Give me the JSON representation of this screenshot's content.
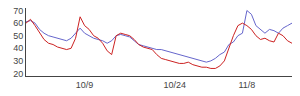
{
  "chart_data": {
    "type": "line",
    "categories": [
      null,
      null,
      null,
      null,
      null,
      null,
      null,
      null,
      null,
      null,
      null,
      null,
      null,
      "10/9",
      null,
      null,
      null,
      null,
      null,
      null,
      null,
      null,
      null,
      null,
      null,
      null,
      null,
      null,
      null,
      null,
      null,
      null,
      null,
      "10/24",
      null,
      null,
      null,
      null,
      null,
      null,
      null,
      null,
      null,
      null,
      null,
      null,
      null,
      null,
      null,
      "11/8",
      null,
      null,
      null,
      null,
      null,
      null,
      null,
      null,
      null,
      null
    ],
    "series": [
      {
        "color": "#6666cc",
        "values": [
          61,
          62,
          60,
          55,
          52,
          50,
          49,
          48,
          47,
          46,
          48,
          52,
          56,
          52,
          50,
          48,
          47,
          46,
          44,
          46,
          50,
          51,
          50,
          49,
          46,
          43,
          42,
          41,
          40,
          39,
          39,
          38,
          37,
          36,
          35,
          34,
          33,
          32,
          31,
          30,
          29,
          30,
          32,
          35,
          37,
          43,
          45,
          50,
          52,
          70,
          67,
          58,
          55,
          52,
          55,
          54,
          52,
          56,
          58,
          60
        ]
      },
      {
        "color": "#cc2222",
        "values": [
          60,
          63,
          58,
          52,
          47,
          44,
          43,
          41,
          40,
          39,
          40,
          48,
          65,
          58,
          55,
          50,
          48,
          44,
          38,
          35,
          50,
          52,
          51,
          50,
          47,
          43,
          41,
          40,
          39,
          35,
          32,
          31,
          30,
          29,
          28,
          28,
          29,
          27,
          26,
          25,
          25,
          24,
          24,
          26,
          30,
          40,
          50,
          58,
          60,
          58,
          55,
          50,
          47,
          48,
          46,
          45,
          52,
          50,
          46,
          44
        ]
      }
    ],
    "ylim": [
      18,
      72
    ],
    "yticks": [
      20,
      30,
      40,
      50,
      60,
      70
    ],
    "grid": false
  }
}
